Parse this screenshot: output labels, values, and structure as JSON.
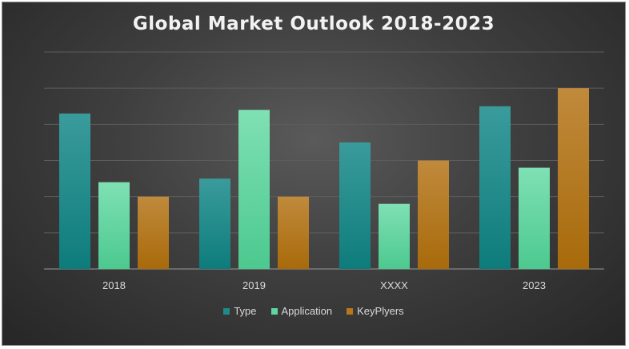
{
  "chart_data": {
    "type": "bar",
    "title": "Global Market Outlook 2018-2023",
    "categories": [
      "2018",
      "2019",
      "XXXX",
      "2023"
    ],
    "series": [
      {
        "name": "Type",
        "values": [
          4.3,
          2.5,
          3.5,
          4.5
        ],
        "color": "#1f8a8a"
      },
      {
        "name": "Application",
        "values": [
          2.4,
          4.4,
          1.8,
          2.8
        ],
        "color": "#5fd6a0"
      },
      {
        "name": "KeyPlyers",
        "values": [
          2.0,
          2.0,
          3.0,
          5.0
        ],
        "color": "#b8781a"
      }
    ],
    "ylim": [
      0,
      6
    ],
    "grid": true,
    "legend_position": "bottom",
    "xlabel": "",
    "ylabel": ""
  }
}
